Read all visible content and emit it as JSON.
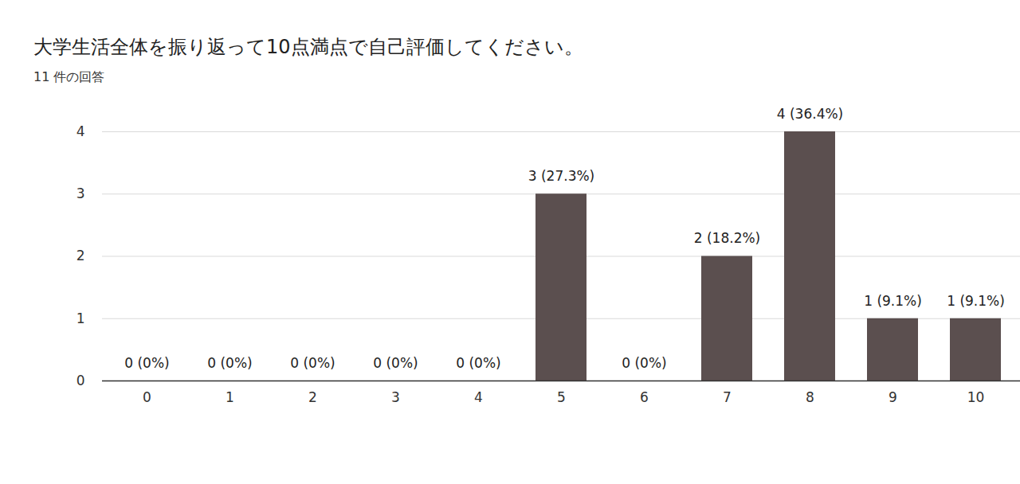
{
  "chart_data": {
    "type": "bar",
    "title": "大学生活全体を振り返って10点満点で自己評価してください。",
    "subtitle": "11 件の回答",
    "categories": [
      "0",
      "1",
      "2",
      "3",
      "4",
      "5",
      "6",
      "7",
      "8",
      "9",
      "10"
    ],
    "values": [
      0,
      0,
      0,
      0,
      0,
      3,
      0,
      2,
      4,
      1,
      1
    ],
    "value_labels": [
      "0 (0%)",
      "0 (0%)",
      "0 (0%)",
      "0 (0%)",
      "0 (0%)",
      "3 (27.3%)",
      "0 (0%)",
      "2 (18.2%)",
      "4 (36.4%)",
      "1 (9.1%)",
      "1 (9.1%)"
    ],
    "color": "#5b4f4f",
    "ylim": [
      0,
      4
    ],
    "yticks": [
      0,
      1,
      2,
      3,
      4
    ],
    "grid": true,
    "data_labels": true
  }
}
